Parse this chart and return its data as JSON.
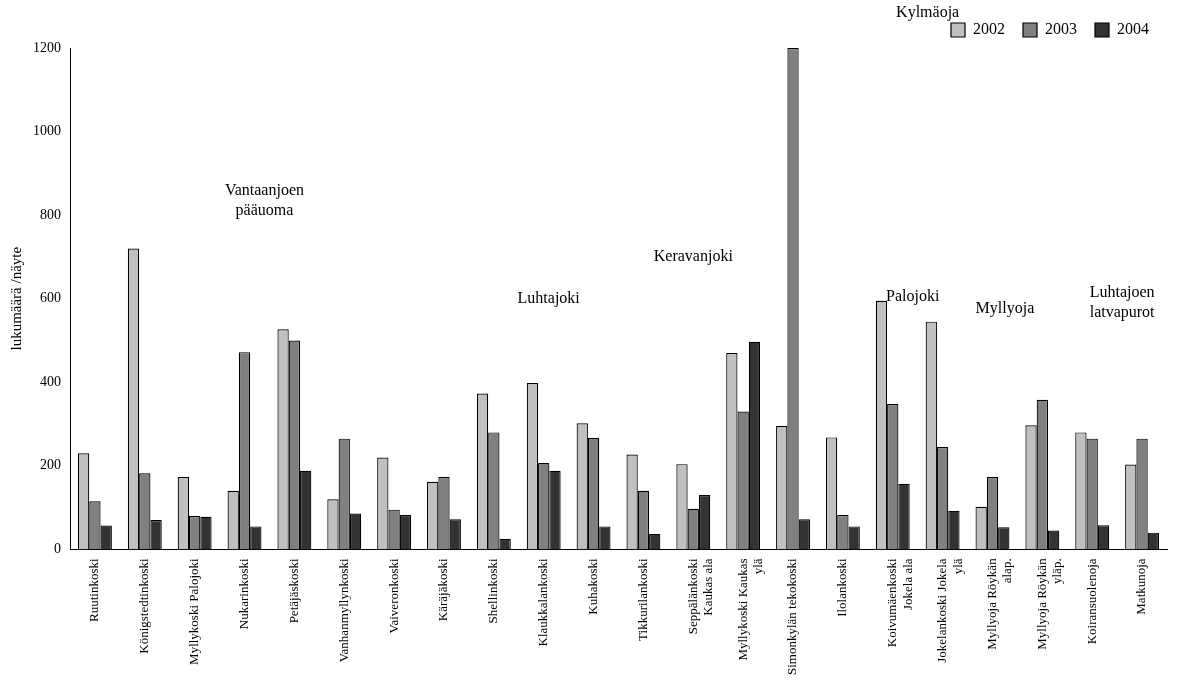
{
  "chart_data": {
    "type": "bar",
    "ylabel": "lukumäärä /näyte",
    "categories": [
      "Ruutinkoski",
      "Königstedtinkoski",
      "Myllykoski Palojoki",
      "Nukarinkoski",
      "Petäjäskoski",
      "Vanhanmyllynkoski",
      "Vaiveronkoski",
      "Käräjäkoski",
      "Shellinkoski",
      "Klaukkalankoski",
      "Kuhakoski",
      "Tikkurilankoski",
      "Seppälänkoski Kaukas ala",
      "Myllykoski Kaukas ylä",
      "Simonkylän tekokoski",
      "Ilolankoski",
      "Koivumäenkoski Jokela ala",
      "Jokelankoski Jokela ylä",
      "Myllyoja Röykän alap.",
      "Myllyoja Röykän yläp.",
      "Koiransuolenoja",
      "Matkunoja"
    ],
    "series": [
      {
        "name": "2002",
        "color": "#c0c0c0",
        "values": [
          230,
          720,
          173,
          140,
          527,
          120,
          220,
          162,
          373,
          398,
          302,
          227,
          204,
          470,
          295,
          268,
          595,
          545,
          102,
          297,
          280,
          203
        ]
      },
      {
        "name": "2003",
        "color": "#808080",
        "values": [
          115,
          182,
          80,
          472,
          500,
          265,
          95,
          173,
          280,
          207,
          267,
          140,
          97,
          330,
          1200,
          82,
          348,
          245,
          173,
          358,
          265,
          265
        ]
      },
      {
        "name": "2004",
        "color": "#333333",
        "values": [
          57,
          70,
          78,
          55,
          188,
          86,
          82,
          72,
          25,
          188,
          55,
          37,
          130,
          497,
          72,
          55,
          157,
          92,
          53,
          45,
          58,
          40
        ]
      }
    ],
    "ylim": [
      0,
      1200
    ],
    "yticks": [
      0,
      200,
      400,
      600,
      800,
      1000,
      1200
    ],
    "legend": "top right",
    "annotations": [
      "Vantaanjoen pääuoma",
      "Luhtajoki",
      "Keravanjoki",
      "Kylmäoja",
      "Palojoki",
      "Myllyoja",
      "Luhtajoen latvapurot"
    ]
  }
}
